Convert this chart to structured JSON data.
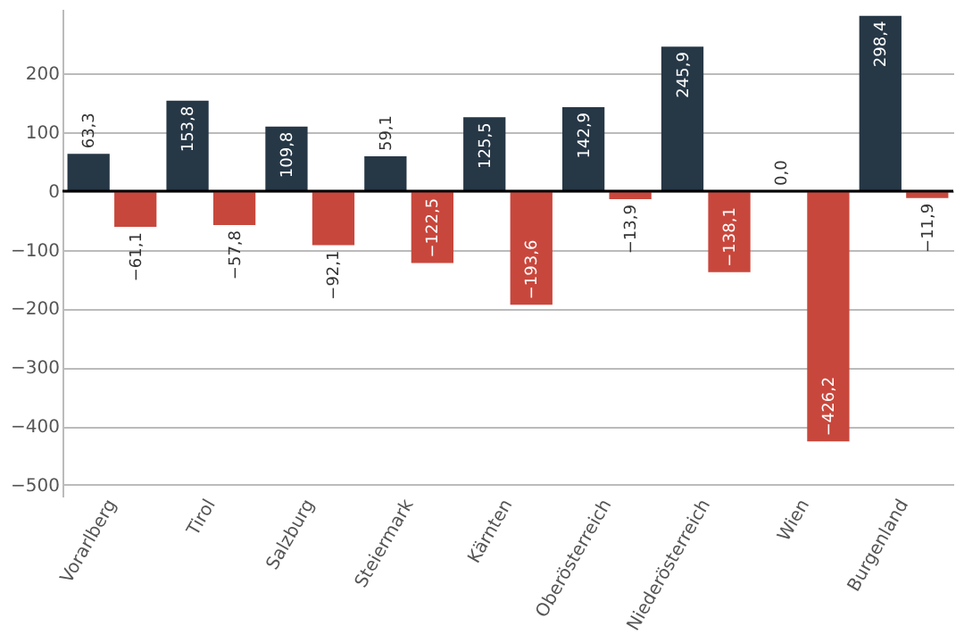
{
  "chart_data": {
    "type": "bar",
    "categories": [
      "Vorarlberg",
      "Tirol",
      "Salzburg",
      "Steiermark",
      "Kärnten",
      "Oberösterreich",
      "Niederösterreich",
      "Wien",
      "Burgenland"
    ],
    "series": [
      {
        "color": "#263746",
        "values": [
          63.3,
          153.8,
          109.8,
          59.1,
          125.5,
          142.9,
          245.9,
          0.0,
          298.4
        ],
        "value_labels": [
          "63,3",
          "153,8",
          "109,8",
          "59,1",
          "125,5",
          "142,9",
          "245,9",
          "0,0",
          "298,4"
        ]
      },
      {
        "color": "#c8473c",
        "values": [
          -61.1,
          -57.8,
          -92.1,
          -122.5,
          -193.6,
          -13.9,
          -138.1,
          -426.2,
          -11.9
        ],
        "value_labels": [
          "−61,1",
          "−57,8",
          "−92,1",
          "−122,5",
          "−193,6",
          "−13,9",
          "−138,1",
          "−426,2",
          "−11,9"
        ]
      }
    ],
    "ylim": [
      -520,
      310
    ],
    "yticks": [
      -500,
      -400,
      -300,
      -200,
      -100,
      0,
      100,
      200
    ],
    "grid": "y",
    "legend": false,
    "ref_lines": [
      {
        "axis": "y",
        "value": 0,
        "color": "#000000"
      }
    ]
  }
}
